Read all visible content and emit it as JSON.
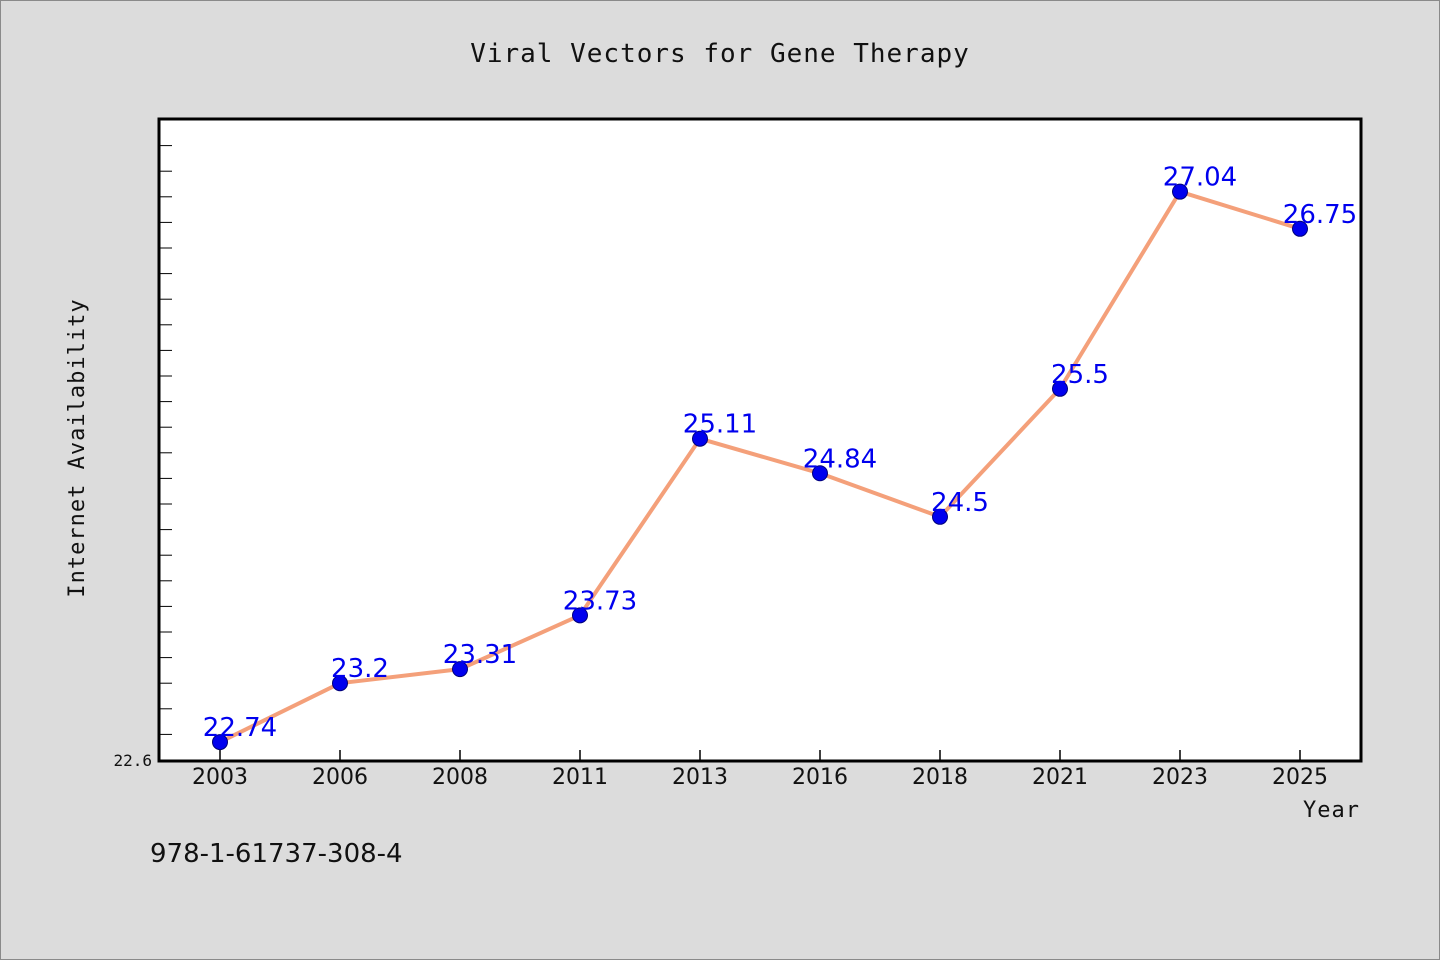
{
  "chart_data": {
    "type": "line",
    "title": "Viral Vectors for Gene Therapy",
    "xlabel": "Year",
    "ylabel": "Internet Availability",
    "categories": [
      "2003",
      "2006",
      "2008",
      "2011",
      "2013",
      "2016",
      "2018",
      "2021",
      "2023",
      "2025"
    ],
    "series": [
      {
        "values": [
          22.74,
          23.2,
          23.31,
          23.73,
          25.11,
          24.84,
          24.5,
          25.5,
          27.04,
          26.75
        ],
        "labels": [
          "22.74",
          "23.2",
          "23.31",
          "23.73",
          "25.11",
          "24.84",
          "24.5",
          "25.5",
          "27.04",
          "26.75"
        ],
        "line_color": "#f4a07a",
        "marker_color": "#0000ee"
      }
    ],
    "ylim": [
      22.6,
      27.6
    ],
    "y_min_label": "22.6",
    "legend": "none",
    "grid": false
  },
  "footer": {
    "isbn": "978-1-61737-308-4"
  }
}
